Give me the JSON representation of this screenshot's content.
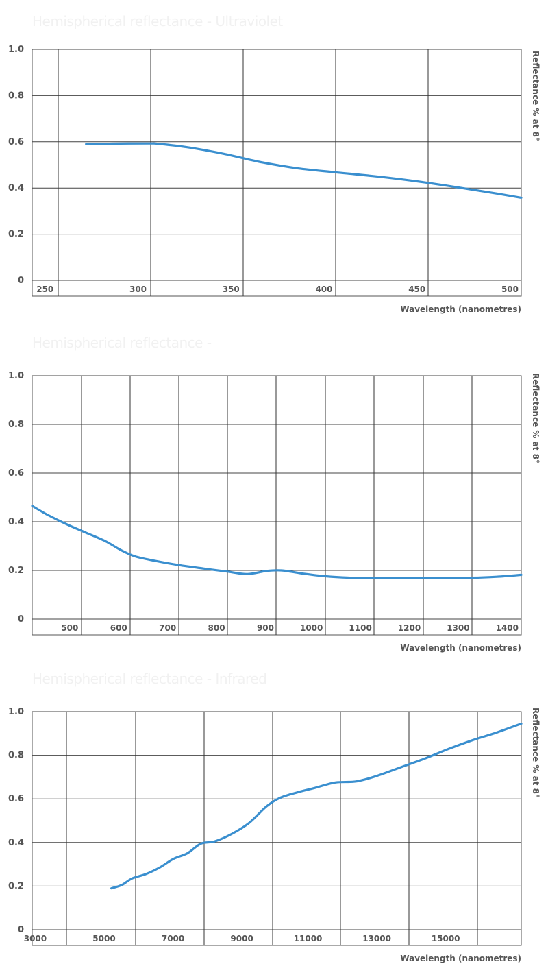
{
  "colors": {
    "series": "#3a8fcf"
  },
  "chart_data": [
    {
      "type": "line",
      "title": "Hemispherical reflectance - Ultraviolet",
      "xlabel": "Wavelength (nanometres)",
      "ylabel": "Reflectance % at 8°",
      "xlim": [
        237,
        500
      ],
      "ylim": [
        0,
        1.0
      ],
      "x_ticks": [
        250,
        300,
        350,
        400,
        450,
        500
      ],
      "y_ticks": [
        "0",
        "0.2",
        "0.4",
        "0.6",
        "0.8",
        "1.0"
      ],
      "grid": true,
      "series": [
        {
          "x": [
            266,
            280,
            300,
            305,
            320,
            340,
            360,
            380,
            400,
            420,
            440,
            460,
            480,
            500
          ],
          "y": [
            0.59,
            0.592,
            0.593,
            0.591,
            0.577,
            0.548,
            0.512,
            0.485,
            0.468,
            0.452,
            0.433,
            0.41,
            0.385,
            0.358
          ]
        }
      ]
    },
    {
      "type": "line",
      "title": "Hemispherical reflectance -",
      "xlabel": "Wavelength (nanometres)",
      "ylabel": "Reflectance % at 8°",
      "xlim": [
        400,
        1400
      ],
      "ylim": [
        0,
        1.0
      ],
      "x_ticks": [
        500,
        600,
        700,
        800,
        900,
        1000,
        1100,
        1200,
        1300,
        1400
      ],
      "y_ticks": [
        "0",
        "0.2",
        "0.4",
        "0.6",
        "0.8",
        "1.0"
      ],
      "grid": true,
      "series": [
        {
          "x": [
            400,
            430,
            470,
            510,
            550,
            580,
            610,
            650,
            700,
            750,
            800,
            840,
            880,
            910,
            950,
            1000,
            1050,
            1100,
            1150,
            1200,
            1250,
            1300,
            1350,
            1400
          ],
          "y": [
            0.465,
            0.43,
            0.39,
            0.355,
            0.32,
            0.285,
            0.258,
            0.24,
            0.222,
            0.208,
            0.195,
            0.185,
            0.198,
            0.2,
            0.188,
            0.176,
            0.17,
            0.168,
            0.168,
            0.168,
            0.169,
            0.17,
            0.174,
            0.182
          ]
        }
      ]
    },
    {
      "type": "line",
      "title": "Hemispherical reflectance - Infrared",
      "xlabel": "Wavelength (nanometres)",
      "ylabel": "Reflectance % at 8°",
      "xlim": [
        2500,
        16700
      ],
      "ylim": [
        0,
        1.0
      ],
      "x_ticks": [
        3000,
        5000,
        7000,
        9000,
        11000,
        13000,
        15000
      ],
      "y_ticks": [
        "0",
        "0.2",
        "0.4",
        "0.6",
        "0.8",
        "1.0"
      ],
      "grid": true,
      "series": [
        {
          "x": [
            4800,
            5100,
            5400,
            5800,
            6200,
            6600,
            7000,
            7400,
            7800,
            8300,
            8800,
            9300,
            9700,
            10200,
            10700,
            11300,
            11900,
            12500,
            13200,
            13900,
            14600,
            15300,
            16000,
            16700
          ],
          "y": [
            0.19,
            0.205,
            0.235,
            0.255,
            0.285,
            0.325,
            0.35,
            0.395,
            0.405,
            0.44,
            0.49,
            0.565,
            0.605,
            0.63,
            0.65,
            0.675,
            0.68,
            0.705,
            0.745,
            0.785,
            0.83,
            0.87,
            0.905,
            0.945
          ]
        }
      ]
    }
  ]
}
